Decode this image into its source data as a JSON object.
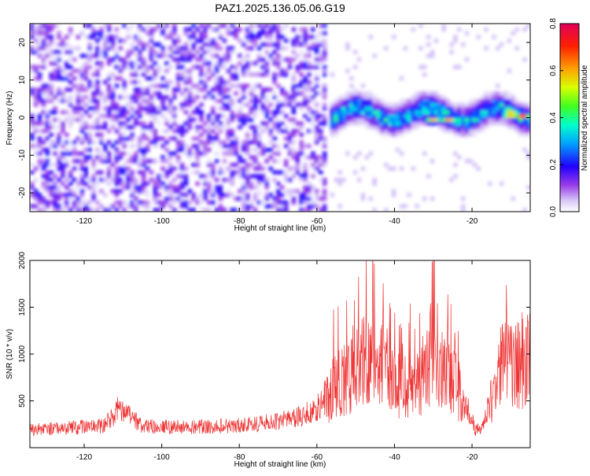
{
  "title": "PAZ1.2025.136.05.06.G19",
  "chart_data": [
    {
      "type": "heatmap",
      "title": "PAZ1.2025.136.05.06.G19",
      "xlabel": "Height of straight line (km)",
      "ylabel": "Frequency (Hz)",
      "xlim": [
        -134,
        -5
      ],
      "ylim": [
        -25,
        25
      ],
      "x_ticks": [
        -120,
        -100,
        -80,
        -60,
        -40,
        -20
      ],
      "y_ticks": [
        -20,
        -10,
        0,
        10,
        20
      ],
      "grid": false,
      "colorbar": {
        "label": "Normalized spectral amplitude",
        "range": [
          0.0,
          0.8
        ],
        "ticks": [
          0.0,
          0.2,
          0.4,
          0.6,
          0.8
        ],
        "colors": [
          "#ffffff",
          "#c9b3f5",
          "#8a2be2",
          "#0000ff",
          "#00c8ff",
          "#00ff80",
          "#ffff00",
          "#ff8000",
          "#ff0000",
          "#e0005a"
        ]
      },
      "features": [
        {
          "region": "noise",
          "x_range": [
            -134,
            -60
          ],
          "freq_range": [
            -25,
            25
          ],
          "amplitude": 0.12
        },
        {
          "region": "signal_band",
          "x_range": [
            -57,
            -5
          ],
          "center_freq": 1,
          "freq_halfwidth": 4,
          "amplitude": 0.35
        },
        {
          "region": "hot_spot",
          "x": -30,
          "freq": -0.5,
          "amplitude": 0.6
        },
        {
          "region": "hot_spot",
          "x": -26,
          "freq": -0.5,
          "amplitude": 0.62
        },
        {
          "region": "hot_spot",
          "x": -10,
          "freq": 1,
          "amplitude": 0.75
        },
        {
          "region": "hot_spot",
          "x": -7,
          "freq": 0.5,
          "amplitude": 0.7
        }
      ]
    },
    {
      "type": "line",
      "xlabel": "Height of straight line (km)",
      "ylabel": "SNR (10 * v/v)",
      "xlim": [
        -134,
        -5
      ],
      "ylim": [
        0,
        2000
      ],
      "x_ticks": [
        -120,
        -100,
        -80,
        -60,
        -40,
        -20
      ],
      "y_ticks": [
        500,
        1000,
        1500,
        2000
      ],
      "grid": false,
      "color": "#ee3333",
      "envelope_x": [
        -134,
        -125,
        -115,
        -111,
        -105,
        -95,
        -85,
        -75,
        -65,
        -60,
        -57,
        -55,
        -50,
        -47,
        -45,
        -43,
        -40,
        -37,
        -33,
        -30,
        -28,
        -26,
        -24,
        -21,
        -19,
        -17,
        -14,
        -12,
        -10,
        -8,
        -5
      ],
      "envelope_y": [
        190,
        210,
        230,
        420,
        230,
        220,
        230,
        250,
        320,
        420,
        560,
        700,
        800,
        1000,
        1100,
        900,
        700,
        650,
        750,
        1050,
        800,
        850,
        650,
        400,
        180,
        260,
        700,
        900,
        850,
        900,
        950
      ]
    }
  ]
}
